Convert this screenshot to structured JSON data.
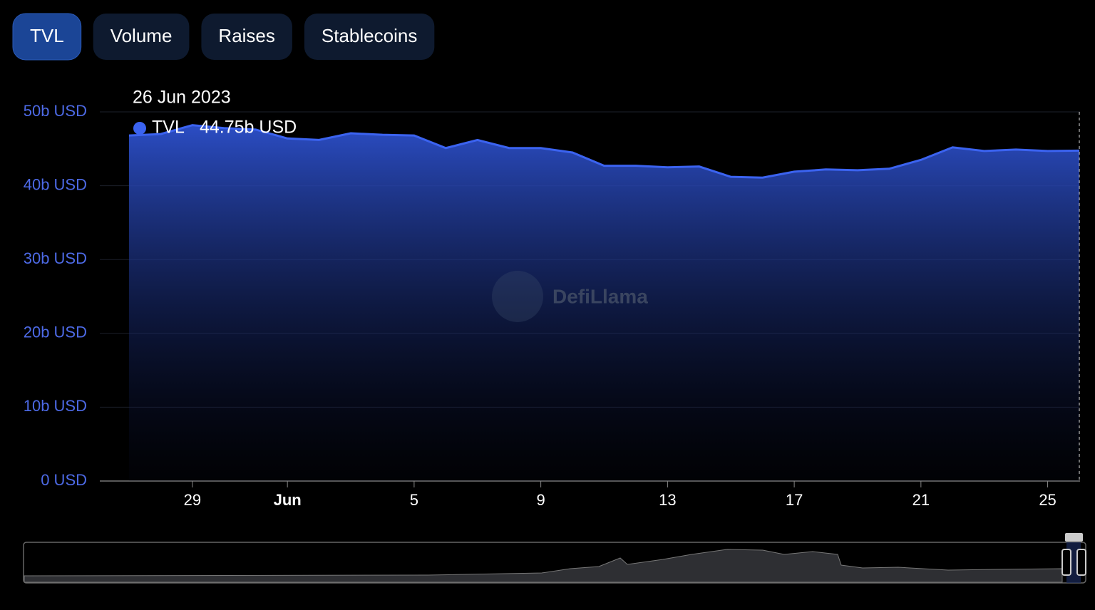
{
  "tabs": [
    "TVL",
    "Volume",
    "Raises",
    "Stablecoins"
  ],
  "active_tab": 0,
  "watermark": "DefiLlama",
  "tooltip": {
    "date": "26 Jun 2023",
    "series": "TVL",
    "value_label": "44.75b USD"
  },
  "chart_data": {
    "type": "area",
    "categories": [
      null,
      null,
      "29",
      null,
      null,
      "Jun",
      null,
      null,
      null,
      "5",
      null,
      null,
      null,
      "9",
      null,
      null,
      null,
      "13",
      null,
      null,
      null,
      "17",
      null,
      null,
      null,
      "21",
      null,
      null,
      null,
      "25",
      null
    ],
    "series": [
      {
        "name": "TVL",
        "color": "#3b63f0",
        "values": [
          46.8,
          47.0,
          48.2,
          47.8,
          47.6,
          46.4,
          46.2,
          47.1,
          46.9,
          46.8,
          45.1,
          46.2,
          45.1,
          45.1,
          44.5,
          42.7,
          42.7,
          42.5,
          42.6,
          41.2,
          41.1,
          41.9,
          42.2,
          42.1,
          42.3,
          43.5,
          45.2,
          44.7,
          44.9,
          44.7,
          44.75
        ]
      }
    ],
    "ylim": [
      0,
      50
    ],
    "yticks": [
      {
        "value": 0,
        "label": "0 USD"
      },
      {
        "value": 10,
        "label": "10b USD"
      },
      {
        "value": 20,
        "label": "20b USD"
      },
      {
        "value": 30,
        "label": "30b USD"
      },
      {
        "value": 40,
        "label": "40b USD"
      },
      {
        "value": 50,
        "label": "50b USD"
      }
    ],
    "grid": true
  }
}
